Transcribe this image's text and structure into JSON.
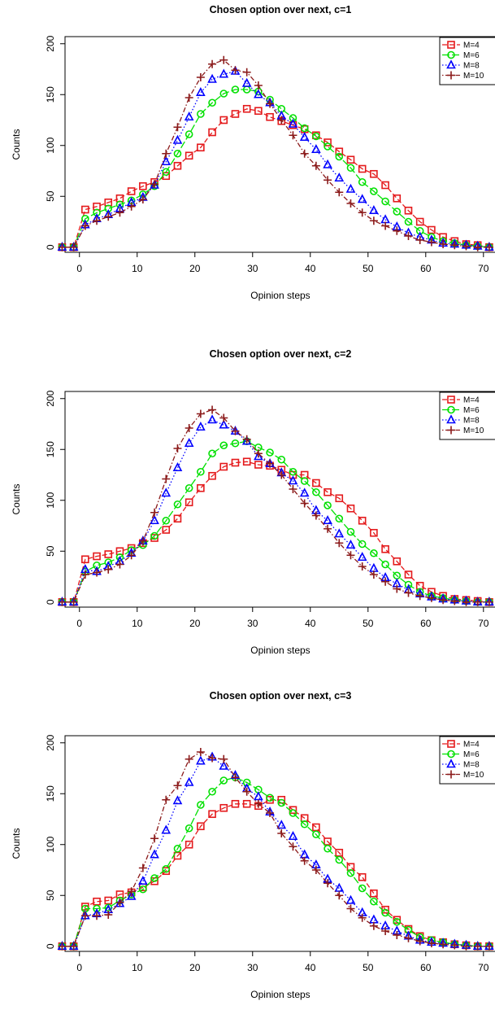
{
  "colors": {
    "M=4": "#e41a1c",
    "M=6": "#00e000",
    "M=8": "#0000ff",
    "M=10": "#8b1a1a"
  },
  "chart_data": [
    {
      "type": "line",
      "title": "Chosen option over next, c=1",
      "xlabel": "Opinion steps",
      "ylabel": "Counts",
      "xlim": [
        -2.5,
        72
      ],
      "ylim": [
        -5,
        207
      ],
      "xticks": [
        0,
        10,
        20,
        30,
        40,
        50,
        60,
        70
      ],
      "yticks": [
        0,
        50,
        100,
        150,
        200
      ],
      "legend": [
        "M=4",
        "M=6",
        "M=8",
        "M=10"
      ],
      "legend_position": "top-right",
      "x": [
        -3,
        -1,
        1,
        3,
        5,
        7,
        9,
        11,
        13,
        15,
        17,
        19,
        21,
        23,
        25,
        27,
        29,
        31,
        33,
        35,
        37,
        39,
        41,
        43,
        45,
        47,
        49,
        51,
        53,
        55,
        57,
        59,
        61,
        63,
        65,
        67,
        69,
        71
      ],
      "series": [
        {
          "name": "M=4",
          "marker": "square",
          "line": "dashed",
          "values": [
            0,
            0,
            37,
            40,
            44,
            48,
            55,
            60,
            64,
            70,
            80,
            90,
            98,
            113,
            125,
            131,
            136,
            134,
            128,
            124,
            120,
            116,
            110,
            103,
            94,
            86,
            77,
            72,
            61,
            48,
            36,
            25,
            17,
            10,
            6,
            3,
            2,
            0
          ]
        },
        {
          "name": "M=6",
          "marker": "circle",
          "line": "longdash",
          "values": [
            0,
            0,
            28,
            34,
            38,
            42,
            46,
            52,
            60,
            74,
            92,
            111,
            131,
            142,
            151,
            155,
            155,
            153,
            145,
            136,
            127,
            117,
            109,
            99,
            89,
            78,
            64,
            55,
            45,
            35,
            25,
            16,
            10,
            6,
            4,
            2,
            1,
            0
          ]
        },
        {
          "name": "M=8",
          "marker": "triangle",
          "line": "dotted",
          "values": [
            0,
            0,
            22,
            28,
            32,
            38,
            44,
            49,
            61,
            84,
            105,
            128,
            152,
            165,
            170,
            173,
            161,
            150,
            142,
            129,
            121,
            108,
            96,
            81,
            68,
            57,
            47,
            36,
            27,
            20,
            14,
            10,
            7,
            4,
            3,
            2,
            1,
            0
          ]
        },
        {
          "name": "M=10",
          "marker": "plus",
          "line": "dotdash",
          "values": [
            0,
            0,
            21,
            26,
            30,
            34,
            40,
            47,
            62,
            92,
            118,
            147,
            167,
            180,
            184,
            174,
            172,
            159,
            141,
            125,
            110,
            92,
            80,
            66,
            54,
            43,
            34,
            26,
            21,
            16,
            11,
            7,
            5,
            3,
            2,
            1,
            0,
            0
          ]
        }
      ]
    },
    {
      "type": "line",
      "title": "Chosen option over next, c=2",
      "xlabel": "Opinion steps",
      "ylabel": "Counts",
      "xlim": [
        -2.5,
        72
      ],
      "ylim": [
        -5,
        207
      ],
      "xticks": [
        0,
        10,
        20,
        30,
        40,
        50,
        60,
        70
      ],
      "yticks": [
        0,
        50,
        100,
        150,
        200
      ],
      "legend": [
        "M=4",
        "M=6",
        "M=8",
        "M=10"
      ],
      "legend_position": "top-right",
      "x": [
        -3,
        -1,
        1,
        3,
        5,
        7,
        9,
        11,
        13,
        15,
        17,
        19,
        21,
        23,
        25,
        27,
        29,
        31,
        33,
        35,
        37,
        39,
        41,
        43,
        45,
        47,
        49,
        51,
        53,
        55,
        57,
        59,
        61,
        63,
        65,
        67,
        69,
        71
      ],
      "series": [
        {
          "name": "M=4",
          "marker": "square",
          "line": "dashed",
          "values": [
            0,
            0,
            42,
            45,
            47,
            50,
            53,
            58,
            63,
            71,
            82,
            98,
            112,
            124,
            133,
            137,
            138,
            135,
            134,
            130,
            125,
            125,
            117,
            108,
            102,
            92,
            80,
            68,
            52,
            40,
            27,
            16,
            10,
            6,
            3,
            2,
            1,
            0
          ]
        },
        {
          "name": "M=6",
          "marker": "circle",
          "line": "longdash",
          "values": [
            0,
            0,
            30,
            36,
            39,
            44,
            51,
            56,
            65,
            80,
            96,
            112,
            128,
            146,
            154,
            156,
            158,
            152,
            147,
            140,
            128,
            119,
            108,
            95,
            82,
            69,
            57,
            48,
            37,
            26,
            17,
            10,
            6,
            4,
            2,
            1,
            0,
            0
          ]
        },
        {
          "name": "M=8",
          "marker": "triangle",
          "line": "dotted",
          "values": [
            0,
            0,
            32,
            30,
            35,
            40,
            48,
            60,
            80,
            107,
            132,
            156,
            172,
            179,
            174,
            168,
            158,
            143,
            136,
            127,
            119,
            107,
            90,
            80,
            67,
            56,
            44,
            33,
            24,
            18,
            12,
            8,
            5,
            3,
            2,
            1,
            0,
            0
          ]
        },
        {
          "name": "M=10",
          "marker": "plus",
          "line": "dotdash",
          "values": [
            0,
            0,
            27,
            29,
            32,
            37,
            46,
            60,
            88,
            121,
            151,
            171,
            185,
            189,
            181,
            168,
            160,
            146,
            136,
            125,
            111,
            97,
            85,
            72,
            58,
            46,
            35,
            27,
            20,
            13,
            9,
            6,
            4,
            2,
            1,
            0,
            0,
            0
          ]
        }
      ]
    },
    {
      "type": "line",
      "title": "Chosen option over next, c=3",
      "xlabel": "Opinion steps",
      "ylabel": "Counts",
      "xlim": [
        -2.5,
        72
      ],
      "ylim": [
        -5,
        207
      ],
      "xticks": [
        0,
        10,
        20,
        30,
        40,
        50,
        60,
        70
      ],
      "yticks": [
        0,
        50,
        100,
        150,
        200
      ],
      "legend": [
        "M=4",
        "M=6",
        "M=8",
        "M=10"
      ],
      "legend_position": "top-right",
      "x": [
        -3,
        -1,
        1,
        3,
        5,
        7,
        9,
        11,
        13,
        15,
        17,
        19,
        21,
        23,
        25,
        27,
        29,
        31,
        33,
        35,
        37,
        39,
        41,
        43,
        45,
        47,
        49,
        51,
        53,
        55,
        57,
        59,
        61,
        63,
        65,
        67,
        69,
        71
      ],
      "series": [
        {
          "name": "M=4",
          "marker": "square",
          "line": "dashed",
          "values": [
            0,
            0,
            39,
            44,
            45,
            51,
            53,
            58,
            64,
            74,
            89,
            100,
            118,
            130,
            136,
            140,
            140,
            138,
            144,
            144,
            134,
            126,
            117,
            103,
            92,
            78,
            68,
            52,
            36,
            26,
            17,
            10,
            6,
            4,
            2,
            1,
            0,
            0
          ]
        },
        {
          "name": "M=6",
          "marker": "circle",
          "line": "longdash",
          "values": [
            0,
            0,
            37,
            37,
            38,
            45,
            51,
            56,
            67,
            76,
            96,
            116,
            139,
            152,
            163,
            166,
            161,
            154,
            146,
            141,
            131,
            120,
            110,
            96,
            85,
            72,
            57,
            44,
            33,
            24,
            16,
            9,
            6,
            4,
            2,
            1,
            0,
            0
          ]
        },
        {
          "name": "M=8",
          "marker": "triangle",
          "line": "dotted",
          "values": [
            0,
            0,
            30,
            32,
            36,
            42,
            49,
            64,
            90,
            114,
            143,
            161,
            182,
            186,
            177,
            168,
            155,
            147,
            132,
            119,
            108,
            90,
            80,
            66,
            57,
            45,
            33,
            26,
            20,
            15,
            10,
            6,
            4,
            3,
            2,
            1,
            0,
            0
          ]
        },
        {
          "name": "M=10",
          "marker": "plus",
          "line": "dotdash",
          "values": [
            0,
            0,
            30,
            30,
            31,
            43,
            54,
            77,
            106,
            144,
            158,
            184,
            191,
            185,
            184,
            166,
            152,
            140,
            131,
            111,
            98,
            84,
            75,
            62,
            50,
            37,
            28,
            20,
            15,
            11,
            8,
            5,
            3,
            2,
            1,
            0,
            0,
            0
          ]
        }
      ]
    }
  ]
}
